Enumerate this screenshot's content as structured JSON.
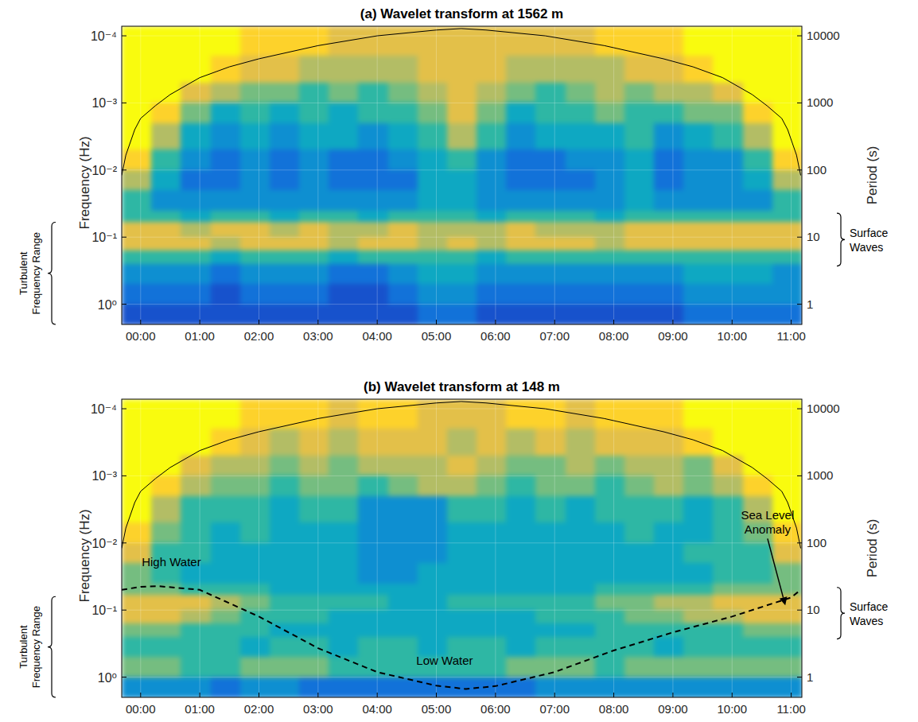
{
  "chart_data": [
    {
      "type": "heatmap",
      "title": "(a) Wavelet transform at 1562 m",
      "y_label": "Frequency (Hz)",
      "y2_label": "Period (s)",
      "log": "y",
      "grid": true,
      "xlim": [
        -0.32,
        11.18
      ],
      "xticks": [
        {
          "value": 0,
          "label": "00:00"
        },
        {
          "value": 1,
          "label": "01:00"
        },
        {
          "value": 2,
          "label": "02:00"
        },
        {
          "value": 3,
          "label": "03:00"
        },
        {
          "value": 4,
          "label": "04:00"
        },
        {
          "value": 5,
          "label": "05:00"
        },
        {
          "value": 6,
          "label": "06:00"
        },
        {
          "value": 7,
          "label": "07:00"
        },
        {
          "value": 8,
          "label": "08:00"
        },
        {
          "value": 9,
          "label": "09:00"
        },
        {
          "value": 10,
          "label": "10:00"
        },
        {
          "value": 11,
          "label": "11:00"
        }
      ],
      "ylim": [
        2,
        7.2e-05
      ],
      "yticks": [
        {
          "value": 0.0001,
          "label": "10⁻⁴"
        },
        {
          "value": 0.001,
          "label": "10⁻³"
        },
        {
          "value": 0.01,
          "label": "10⁻²"
        },
        {
          "value": 0.1,
          "label": "10⁻¹"
        },
        {
          "value": 1,
          "label": "10⁰"
        }
      ],
      "y2lim": [
        0.5,
        13889
      ],
      "y2ticks": [
        1,
        10,
        100,
        1000,
        10000
      ],
      "zlim": [
        0,
        10
      ],
      "x_edges": [
        -0.32,
        0.18,
        0.68,
        1.18,
        1.68,
        2.18,
        2.68,
        3.18,
        3.68,
        4.18,
        4.68,
        5.18,
        5.68,
        6.18,
        6.68,
        7.18,
        7.68,
        8.18,
        8.68,
        9.18,
        9.68,
        10.18,
        10.68,
        11.18
      ],
      "y_edges": [
        7.2e-05,
        0.0002,
        0.0005,
        0.001,
        0.002,
        0.005,
        0.01,
        0.02,
        0.04,
        0.06,
        0.1,
        0.16,
        0.25,
        0.5,
        1,
        2
      ],
      "cells": [
        [
          10,
          10,
          10,
          10,
          9,
          9,
          9,
          8,
          8,
          8,
          8,
          8,
          8,
          8,
          8,
          8,
          9,
          9,
          9,
          10,
          10,
          10,
          10
        ],
        [
          10,
          10,
          10,
          9,
          8,
          8,
          7,
          7,
          7,
          7,
          8,
          8,
          8,
          7,
          7,
          7,
          7,
          8,
          8,
          9,
          10,
          10,
          10
        ],
        [
          10,
          10,
          8,
          7,
          6,
          6,
          5,
          6,
          5,
          6,
          7,
          8,
          7,
          6,
          5,
          6,
          7,
          6,
          7,
          7,
          8,
          10,
          10
        ],
        [
          10,
          9,
          6,
          4,
          5,
          4,
          5,
          4,
          5,
          5,
          6,
          8,
          6,
          4,
          5,
          5,
          6,
          5,
          5,
          6,
          6,
          9,
          10
        ],
        [
          10,
          7,
          4,
          3,
          4,
          3,
          4,
          4,
          3,
          4,
          5,
          7,
          5,
          3,
          4,
          4,
          4,
          5,
          3,
          4,
          5,
          7,
          10
        ],
        [
          9,
          5,
          3,
          2,
          3,
          2,
          3,
          2,
          2,
          3,
          4,
          5,
          3,
          2,
          2,
          3,
          3,
          4,
          2,
          3,
          3,
          5,
          9
        ],
        [
          7,
          4,
          2,
          2,
          3,
          2,
          3,
          2,
          2,
          2,
          4,
          4,
          3,
          2,
          2,
          2,
          3,
          4,
          2,
          3,
          3,
          4,
          7
        ],
        [
          5,
          3,
          3,
          3,
          3,
          3,
          3,
          3,
          3,
          3,
          4,
          4,
          3,
          3,
          3,
          3,
          3,
          4,
          3,
          3,
          3,
          3,
          5
        ],
        [
          5,
          5,
          4,
          5,
          5,
          4,
          5,
          5,
          4,
          5,
          5,
          5,
          4,
          5,
          5,
          5,
          4,
          5,
          5,
          5,
          5,
          5,
          5
        ],
        [
          8,
          8,
          7,
          8,
          8,
          7,
          8,
          7,
          7,
          8,
          7,
          7,
          7,
          8,
          7,
          7,
          7,
          8,
          8,
          8,
          8,
          8,
          8
        ],
        [
          8,
          8,
          8,
          7,
          8,
          8,
          8,
          7,
          8,
          8,
          7,
          8,
          7,
          8,
          8,
          8,
          7,
          8,
          8,
          8,
          8,
          8,
          8
        ],
        [
          5,
          5,
          5,
          4,
          5,
          5,
          5,
          4,
          5,
          5,
          5,
          5,
          4,
          5,
          5,
          5,
          5,
          5,
          5,
          5,
          5,
          5,
          5
        ],
        [
          3,
          3,
          3,
          2,
          3,
          3,
          3,
          2,
          2,
          3,
          4,
          4,
          3,
          3,
          3,
          3,
          3,
          3,
          3,
          4,
          4,
          4,
          3
        ],
        [
          2,
          2,
          2,
          1,
          2,
          2,
          2,
          1,
          1,
          2,
          3,
          3,
          2,
          2,
          2,
          2,
          2,
          2,
          2,
          3,
          3,
          3,
          3
        ],
        [
          1,
          1,
          1,
          1,
          1,
          1,
          1,
          1,
          1,
          1,
          2,
          2,
          1,
          1,
          1,
          1,
          1,
          1,
          1,
          2,
          2,
          2,
          2
        ]
      ],
      "series": [
        {
          "type": "line",
          "color": "#000000",
          "line_style": "solid",
          "x": [
            -0.32,
            -0.25,
            -0.1,
            0,
            0.25,
            0.5,
            1,
            1.5,
            2,
            3,
            4,
            5,
            5.42,
            5.84,
            6.84,
            7.84,
            8.84,
            9.34,
            9.84,
            10.34,
            10.59,
            10.84,
            10.94,
            11.09,
            11.16
          ],
          "values": [
            0.012,
            0.006,
            0.0025,
            0.0017,
            0.0011,
            0.00075,
            0.00042,
            0.00029,
            0.00022,
            0.00014,
            0.0001,
            8.2e-05,
            7.8e-05,
            8.2e-05,
            0.0001,
            0.00014,
            0.00022,
            0.00029,
            0.00042,
            0.00075,
            0.0011,
            0.0017,
            0.0025,
            0.006,
            0.012
          ]
        }
      ],
      "brackets": [
        {
          "text": "Turbulent Frequency Range",
          "range": [
            0.06,
            2
          ],
          "side": "left"
        },
        {
          "text": "Surface Waves",
          "range": [
            0.044,
            0.27
          ],
          "side": "right"
        }
      ]
    },
    {
      "type": "heatmap",
      "title": "(b) Wavelet transform at 148 m",
      "y_label": "Frequency (Hz)",
      "y2_label": "Period (s)",
      "log": "y",
      "grid": true,
      "xlim": [
        -0.32,
        11.18
      ],
      "xticks": [
        {
          "value": 0,
          "label": "00:00"
        },
        {
          "value": 1,
          "label": "01:00"
        },
        {
          "value": 2,
          "label": "02:00"
        },
        {
          "value": 3,
          "label": "03:00"
        },
        {
          "value": 4,
          "label": "04:00"
        },
        {
          "value": 5,
          "label": "05:00"
        },
        {
          "value": 6,
          "label": "06:00"
        },
        {
          "value": 7,
          "label": "07:00"
        },
        {
          "value": 8,
          "label": "08:00"
        },
        {
          "value": 9,
          "label": "09:00"
        },
        {
          "value": 10,
          "label": "10:00"
        },
        {
          "value": 11,
          "label": "11:00"
        }
      ],
      "ylim": [
        2,
        7.2e-05
      ],
      "yticks": [
        {
          "value": 0.0001,
          "label": "10⁻⁴"
        },
        {
          "value": 0.001,
          "label": "10⁻³"
        },
        {
          "value": 0.01,
          "label": "10⁻²"
        },
        {
          "value": 0.1,
          "label": "10⁻¹"
        },
        {
          "value": 1,
          "label": "10⁰"
        }
      ],
      "y2lim": [
        0.5,
        13889
      ],
      "y2ticks": [
        1,
        10,
        100,
        1000,
        10000
      ],
      "zlim": [
        0,
        10
      ],
      "x_edges": [
        -0.32,
        0.18,
        0.68,
        1.18,
        1.68,
        2.18,
        2.68,
        3.18,
        3.68,
        4.18,
        4.68,
        5.18,
        5.68,
        6.18,
        6.68,
        7.18,
        7.68,
        8.18,
        8.68,
        9.18,
        9.68,
        10.18,
        10.68,
        11.18
      ],
      "y_edges": [
        7.2e-05,
        0.0002,
        0.0005,
        0.001,
        0.002,
        0.005,
        0.01,
        0.02,
        0.04,
        0.06,
        0.1,
        0.16,
        0.25,
        0.5,
        1,
        2
      ],
      "cells": [
        [
          10,
          10,
          10,
          10,
          9,
          9,
          9,
          8,
          9,
          9,
          8,
          8,
          8,
          9,
          9,
          8,
          9,
          9,
          9,
          10,
          10,
          10,
          10
        ],
        [
          10,
          10,
          10,
          9,
          8,
          7,
          8,
          7,
          8,
          8,
          8,
          7,
          8,
          7,
          8,
          7,
          8,
          8,
          8,
          9,
          10,
          10,
          10
        ],
        [
          10,
          10,
          8,
          7,
          7,
          6,
          7,
          6,
          7,
          7,
          7,
          8,
          7,
          6,
          6,
          7,
          6,
          7,
          7,
          6,
          8,
          10,
          10
        ],
        [
          10,
          9,
          7,
          6,
          6,
          5,
          6,
          6,
          5,
          6,
          7,
          7,
          6,
          5,
          6,
          6,
          5,
          6,
          7,
          6,
          7,
          9,
          10
        ],
        [
          10,
          7,
          5,
          5,
          5,
          4,
          5,
          5,
          3,
          3,
          3,
          5,
          5,
          4,
          5,
          4,
          5,
          5,
          5,
          4,
          5,
          7,
          10
        ],
        [
          9,
          6,
          5,
          4,
          5,
          4,
          4,
          4,
          3,
          3,
          3,
          4,
          4,
          4,
          4,
          4,
          4,
          5,
          4,
          4,
          5,
          6,
          9
        ],
        [
          8,
          5,
          5,
          4,
          4,
          4,
          4,
          4,
          3,
          3,
          3,
          4,
          4,
          4,
          4,
          4,
          4,
          4,
          4,
          5,
          5,
          5,
          8
        ],
        [
          6,
          5,
          4,
          4,
          4,
          4,
          4,
          4,
          3,
          3,
          4,
          4,
          4,
          4,
          4,
          4,
          4,
          4,
          4,
          4,
          5,
          5,
          6
        ],
        [
          6,
          6,
          5,
          5,
          5,
          4,
          4,
          4,
          4,
          4,
          4,
          4,
          4,
          4,
          4,
          4,
          5,
          5,
          5,
          5,
          6,
          6,
          6
        ],
        [
          8,
          8,
          8,
          7,
          6,
          5,
          5,
          5,
          5,
          4,
          4,
          5,
          5,
          5,
          5,
          5,
          6,
          6,
          7,
          7,
          8,
          8,
          8
        ],
        [
          8,
          8,
          7,
          6,
          5,
          5,
          5,
          4,
          4,
          4,
          4,
          4,
          4,
          4,
          5,
          5,
          5,
          6,
          6,
          7,
          7,
          8,
          8
        ],
        [
          6,
          6,
          5,
          5,
          5,
          4,
          4,
          4,
          4,
          4,
          4,
          4,
          4,
          4,
          4,
          4,
          5,
          5,
          5,
          5,
          5,
          6,
          6
        ],
        [
          5,
          5,
          5,
          5,
          4,
          5,
          5,
          4,
          5,
          5,
          4,
          5,
          5,
          4,
          5,
          5,
          5,
          5,
          4,
          5,
          5,
          5,
          5
        ],
        [
          6,
          6,
          5,
          5,
          6,
          6,
          6,
          5,
          5,
          5,
          5,
          5,
          5,
          6,
          6,
          6,
          5,
          6,
          6,
          6,
          6,
          6,
          6
        ],
        [
          3,
          3,
          3,
          2,
          3,
          3,
          2,
          2,
          2,
          2,
          2,
          2,
          2,
          2,
          3,
          3,
          3,
          3,
          3,
          3,
          3,
          3,
          3
        ]
      ],
      "series": [
        {
          "type": "line",
          "color": "#000000",
          "line_style": "solid",
          "x": [
            -0.32,
            -0.25,
            -0.1,
            0,
            0.25,
            0.5,
            1,
            1.5,
            2,
            3,
            4,
            5,
            5.42,
            5.84,
            6.84,
            7.84,
            8.84,
            9.34,
            9.84,
            10.34,
            10.59,
            10.84,
            10.94,
            11.09,
            11.16
          ],
          "values": [
            0.012,
            0.006,
            0.0025,
            0.0017,
            0.0011,
            0.00075,
            0.00042,
            0.00029,
            0.00022,
            0.00014,
            0.0001,
            8.2e-05,
            7.8e-05,
            8.2e-05,
            0.0001,
            0.00014,
            0.00022,
            0.00029,
            0.00042,
            0.00075,
            0.0011,
            0.0017,
            0.0025,
            0.006,
            0.012
          ]
        },
        {
          "type": "line",
          "color": "#000000",
          "line_style": "dashed",
          "x": [
            -0.32,
            0,
            0.3,
            1,
            2,
            3,
            4,
            5,
            5.5,
            6,
            7,
            8,
            9,
            10,
            11,
            11.16
          ],
          "values": [
            0.05,
            0.045,
            0.044,
            0.05,
            0.125,
            0.37,
            0.84,
            1.34,
            1.5,
            1.36,
            0.84,
            0.4,
            0.215,
            0.125,
            0.065,
            0.05
          ]
        }
      ],
      "brackets": [
        {
          "text": "Turbulent Frequency Range",
          "range": [
            0.063,
            2
          ],
          "side": "left"
        },
        {
          "text": "Surface Waves",
          "range": [
            0.046,
            0.27
          ],
          "side": "right"
        }
      ],
      "annotations": [
        {
          "text": "High Water",
          "x": 0.52,
          "y": 0.022
        },
        {
          "text": "Low Water",
          "x": 5.14,
          "y": 0.65
        },
        {
          "text": "Sea Level Anomaly",
          "x": 10.6,
          "y": 0.005,
          "arrow_to": [
            10.9,
            0.085
          ]
        }
      ]
    }
  ]
}
